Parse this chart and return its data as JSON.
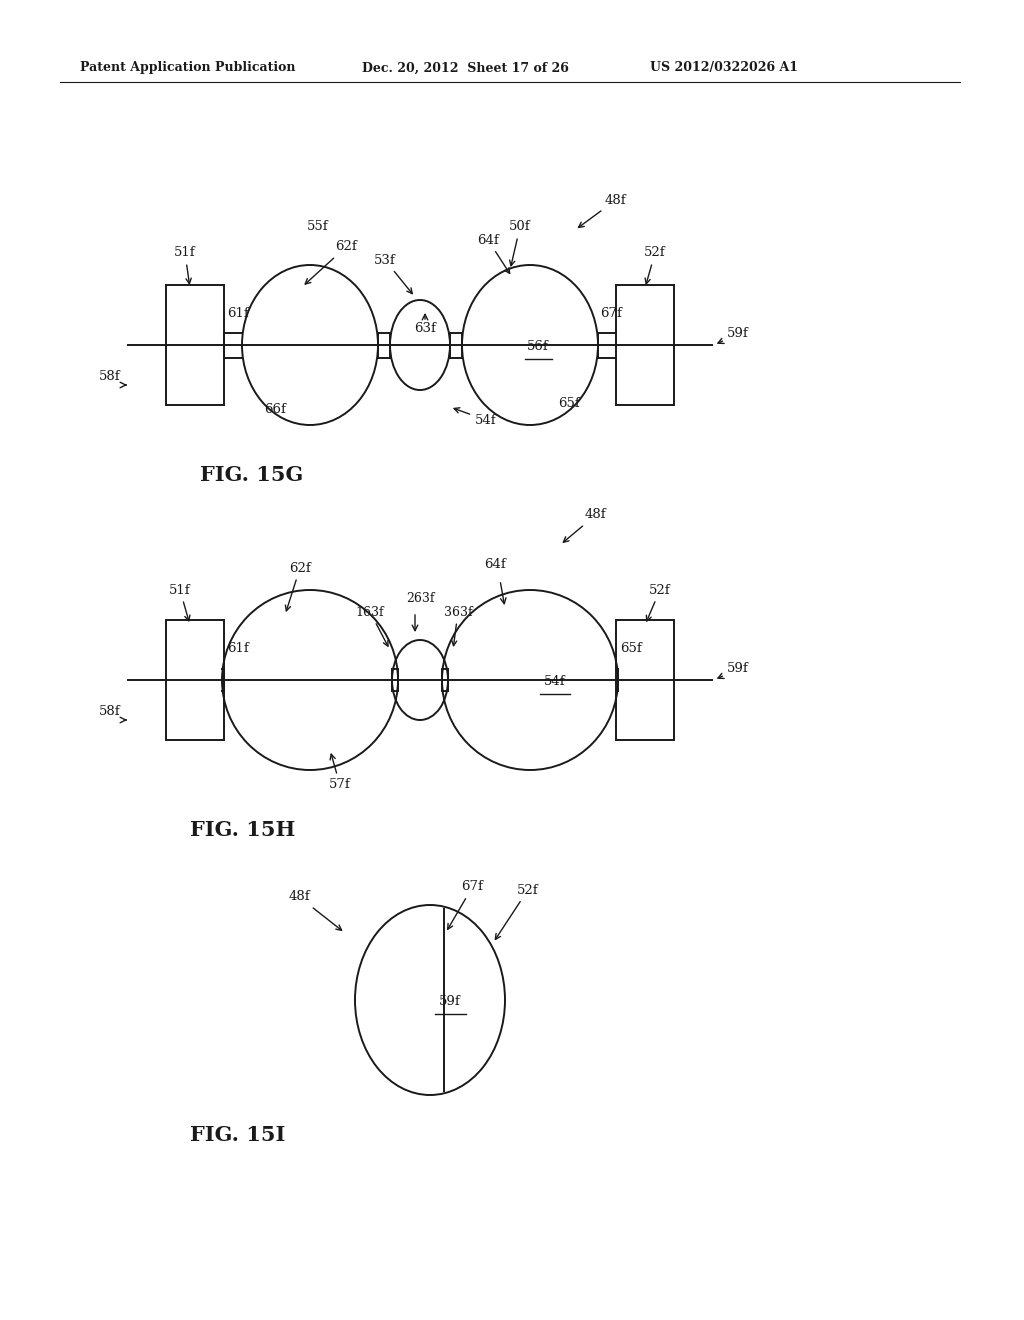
{
  "bg_color": "#ffffff",
  "header_text": "Patent Application Publication",
  "header_date": "Dec. 20, 2012  Sheet 17 of 26",
  "header_patent": "US 2012/0322026 A1"
}
